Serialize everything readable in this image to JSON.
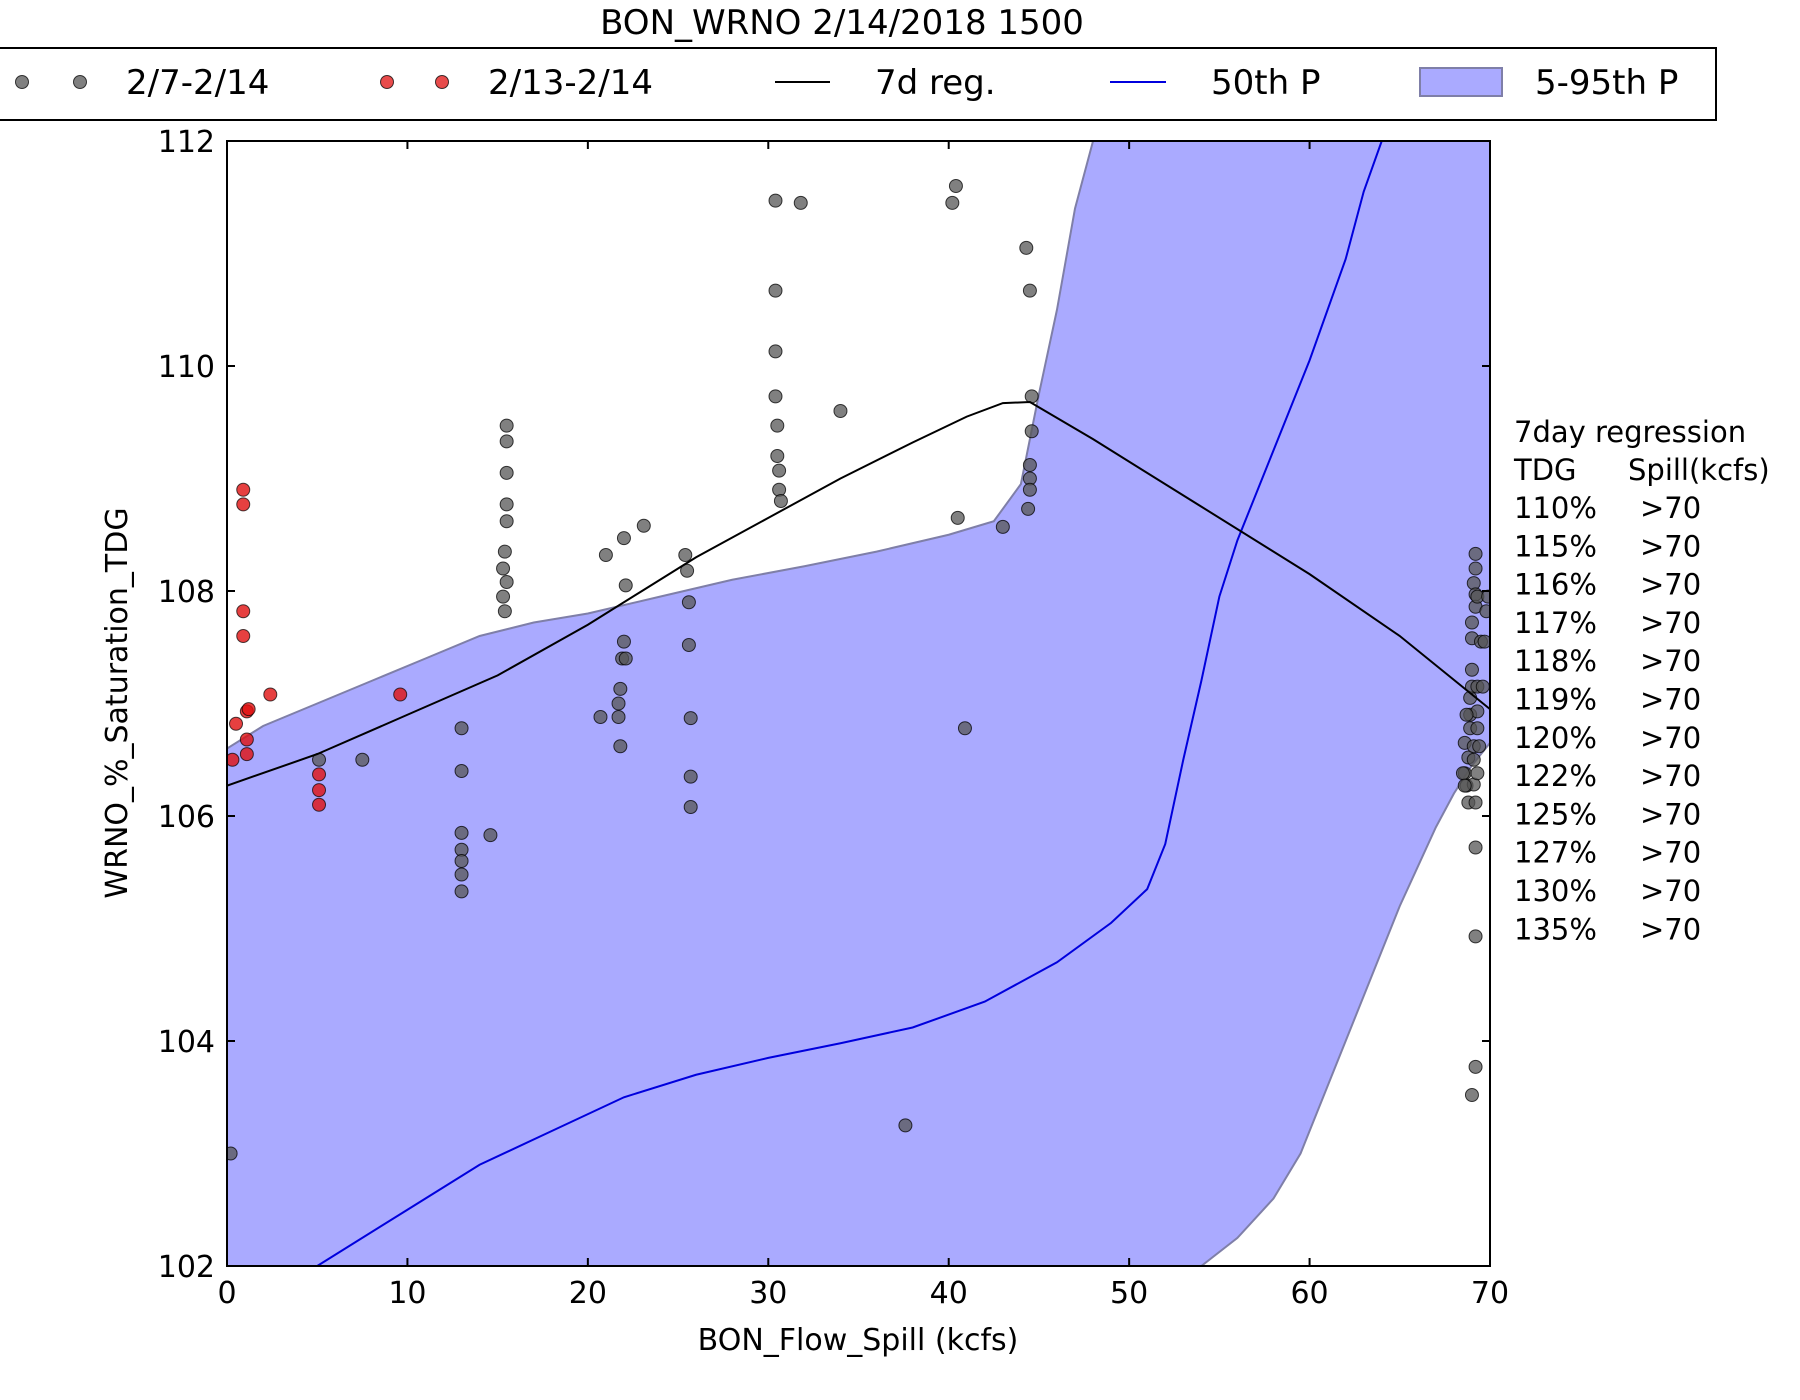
{
  "chart_data": {
    "type": "scatter",
    "title": "BON_WRNO 2/14/2018 1500",
    "xlabel": "BON_Flow_Spill (kcfs)",
    "ylabel": "WRNO_%_Saturation_TDG",
    "xlim": [
      0,
      70
    ],
    "ylim": [
      102,
      112
    ],
    "x_ticks": [
      0,
      10,
      20,
      30,
      40,
      50,
      60,
      70
    ],
    "y_ticks": [
      102,
      104,
      106,
      108,
      110,
      112
    ],
    "grid": false,
    "legend_position": "top, above plot",
    "legend": [
      {
        "label": "2/7-2/14",
        "kind": "markers",
        "color": "#555555"
      },
      {
        "label": "2/13-2/14",
        "kind": "markers",
        "color": "#e03030"
      },
      {
        "label": "7d reg.",
        "kind": "line",
        "color": "#000000"
      },
      {
        "label": "50th P",
        "kind": "line",
        "color": "#0000dd"
      },
      {
        "label": "5-95th P",
        "kind": "band",
        "color": "#aaaaff"
      }
    ],
    "colors": {
      "band_fill": "#aaaaff",
      "band_edge": "#7f7fa8",
      "median": "#0000dd",
      "regression": "#000000",
      "week_points": "#555555",
      "recent_points": "#e01010"
    },
    "series": [
      {
        "name": "5-95th P",
        "kind": "band",
        "upper": [
          [
            0,
            106.6
          ],
          [
            2,
            106.8
          ],
          [
            5,
            107.0
          ],
          [
            8,
            107.2
          ],
          [
            11,
            107.4
          ],
          [
            14,
            107.6
          ],
          [
            17,
            107.72
          ],
          [
            20,
            107.8
          ],
          [
            24,
            107.95
          ],
          [
            28,
            108.1
          ],
          [
            32,
            108.22
          ],
          [
            36,
            108.35
          ],
          [
            40,
            108.5
          ],
          [
            42.5,
            108.62
          ],
          [
            44,
            108.95
          ],
          [
            45,
            109.75
          ],
          [
            46,
            110.5
          ],
          [
            47,
            111.4
          ],
          [
            48,
            112.0
          ],
          [
            70,
            112.0
          ]
        ],
        "lower": [
          [
            0,
            102.0
          ],
          [
            54,
            102.0
          ],
          [
            56,
            102.25
          ],
          [
            58,
            102.6
          ],
          [
            59.5,
            103.0
          ],
          [
            61,
            103.6
          ],
          [
            63,
            104.4
          ],
          [
            65,
            105.2
          ],
          [
            67,
            105.9
          ],
          [
            68,
            106.2
          ],
          [
            69,
            106.45
          ],
          [
            70,
            106.65
          ]
        ]
      },
      {
        "name": "50th P",
        "kind": "line",
        "points": [
          [
            5,
            102.0
          ],
          [
            10,
            102.5
          ],
          [
            14,
            102.9
          ],
          [
            18,
            103.2
          ],
          [
            22,
            103.5
          ],
          [
            26,
            103.7
          ],
          [
            30,
            103.85
          ],
          [
            34,
            103.98
          ],
          [
            38,
            104.12
          ],
          [
            42,
            104.35
          ],
          [
            46,
            104.7
          ],
          [
            49,
            105.05
          ],
          [
            51,
            105.35
          ],
          [
            52,
            105.75
          ],
          [
            53,
            106.5
          ],
          [
            54,
            107.2
          ],
          [
            55,
            107.95
          ],
          [
            56,
            108.45
          ],
          [
            58,
            109.25
          ],
          [
            60,
            110.05
          ],
          [
            62,
            110.95
          ],
          [
            63,
            111.55
          ],
          [
            64,
            112.0
          ]
        ]
      },
      {
        "name": "7d reg.",
        "kind": "line",
        "points": [
          [
            0,
            106.27
          ],
          [
            5,
            106.55
          ],
          [
            10,
            106.9
          ],
          [
            15,
            107.25
          ],
          [
            20,
            107.7
          ],
          [
            23,
            108.0
          ],
          [
            26,
            108.3
          ],
          [
            30,
            108.65
          ],
          [
            34,
            109.0
          ],
          [
            38,
            109.32
          ],
          [
            41,
            109.55
          ],
          [
            43,
            109.67
          ],
          [
            44.5,
            109.68
          ],
          [
            48,
            109.35
          ],
          [
            54,
            108.75
          ],
          [
            60,
            108.15
          ],
          [
            65,
            107.6
          ],
          [
            70,
            106.95
          ]
        ]
      },
      {
        "name": "2/7-2/14",
        "kind": "scatter",
        "points": [
          [
            0.2,
            103.0
          ],
          [
            5.1,
            106.5
          ],
          [
            7.5,
            106.5
          ],
          [
            13.0,
            106.78
          ],
          [
            13.0,
            106.4
          ],
          [
            13.0,
            105.85
          ],
          [
            13.0,
            105.7
          ],
          [
            13.0,
            105.6
          ],
          [
            13.0,
            105.48
          ],
          [
            13.0,
            105.33
          ],
          [
            14.6,
            105.83
          ],
          [
            15.5,
            109.47
          ],
          [
            15.5,
            109.33
          ],
          [
            15.5,
            109.05
          ],
          [
            15.5,
            108.77
          ],
          [
            15.5,
            108.62
          ],
          [
            15.4,
            108.35
          ],
          [
            15.3,
            108.2
          ],
          [
            15.5,
            108.08
          ],
          [
            15.3,
            107.95
          ],
          [
            15.4,
            107.82
          ],
          [
            20.7,
            106.88
          ],
          [
            21.0,
            108.32
          ],
          [
            21.7,
            106.88
          ],
          [
            21.7,
            107.0
          ],
          [
            21.8,
            106.62
          ],
          [
            21.8,
            107.13
          ],
          [
            21.9,
            107.4
          ],
          [
            22.0,
            107.55
          ],
          [
            22.0,
            108.47
          ],
          [
            22.1,
            108.05
          ],
          [
            22.1,
            107.4
          ],
          [
            23.1,
            108.58
          ],
          [
            25.4,
            108.32
          ],
          [
            25.5,
            108.18
          ],
          [
            25.6,
            107.9
          ],
          [
            25.6,
            107.52
          ],
          [
            25.7,
            106.87
          ],
          [
            25.7,
            106.35
          ],
          [
            25.7,
            106.08
          ],
          [
            30.4,
            111.47
          ],
          [
            30.4,
            110.67
          ],
          [
            30.4,
            110.13
          ],
          [
            30.4,
            109.73
          ],
          [
            30.5,
            109.47
          ],
          [
            30.5,
            109.2
          ],
          [
            30.6,
            109.07
          ],
          [
            30.6,
            108.9
          ],
          [
            30.7,
            108.8
          ],
          [
            31.8,
            111.45
          ],
          [
            34.0,
            109.6
          ],
          [
            37.6,
            103.25
          ],
          [
            40.2,
            111.45
          ],
          [
            40.4,
            111.6
          ],
          [
            40.5,
            108.65
          ],
          [
            40.9,
            106.78
          ],
          [
            43.0,
            108.57
          ],
          [
            44.3,
            111.05
          ],
          [
            44.5,
            110.67
          ],
          [
            44.6,
            109.73
          ],
          [
            44.6,
            109.42
          ],
          [
            44.5,
            109.12
          ],
          [
            44.5,
            109.0
          ],
          [
            44.5,
            108.9
          ],
          [
            44.4,
            108.73
          ],
          [
            68.6,
            106.65
          ],
          [
            68.6,
            106.38
          ],
          [
            68.7,
            106.27
          ],
          [
            68.8,
            106.12
          ],
          [
            68.8,
            106.52
          ],
          [
            68.9,
            106.9
          ],
          [
            68.9,
            106.78
          ],
          [
            68.9,
            107.05
          ],
          [
            69.0,
            107.3
          ],
          [
            69.0,
            107.15
          ],
          [
            69.0,
            107.58
          ],
          [
            69.0,
            107.72
          ],
          [
            69.1,
            106.62
          ],
          [
            69.1,
            106.5
          ],
          [
            69.1,
            106.28
          ],
          [
            69.2,
            106.12
          ],
          [
            69.2,
            105.72
          ],
          [
            69.2,
            104.93
          ],
          [
            69.2,
            103.77
          ],
          [
            69.0,
            103.52
          ],
          [
            69.2,
            108.33
          ],
          [
            69.2,
            108.2
          ],
          [
            69.1,
            108.07
          ],
          [
            69.2,
            107.97
          ],
          [
            69.2,
            107.86
          ],
          [
            69.3,
            107.95
          ],
          [
            69.3,
            106.93
          ],
          [
            69.3,
            106.78
          ],
          [
            69.4,
            106.62
          ],
          [
            69.3,
            106.38
          ],
          [
            69.3,
            107.15
          ],
          [
            69.6,
            107.15
          ],
          [
            69.5,
            107.55
          ],
          [
            69.7,
            107.55
          ],
          [
            69.8,
            107.82
          ],
          [
            69.9,
            107.95
          ],
          [
            68.5,
            106.38
          ],
          [
            68.6,
            106.27
          ],
          [
            68.7,
            106.9
          ]
        ]
      },
      {
        "name": "2/13-2/14",
        "kind": "scatter",
        "points": [
          [
            0.3,
            106.5
          ],
          [
            0.5,
            106.82
          ],
          [
            0.9,
            108.9
          ],
          [
            0.9,
            108.77
          ],
          [
            0.9,
            107.82
          ],
          [
            0.9,
            107.6
          ],
          [
            1.1,
            106.93
          ],
          [
            1.1,
            106.68
          ],
          [
            1.1,
            106.55
          ],
          [
            1.2,
            106.95
          ],
          [
            2.4,
            107.08
          ],
          [
            5.1,
            106.37
          ],
          [
            5.1,
            106.23
          ],
          [
            5.1,
            106.1
          ],
          [
            9.6,
            107.08
          ]
        ]
      }
    ],
    "side_table": {
      "heading": "7day regression",
      "columns": [
        "TDG",
        "Spill(kcfs)"
      ],
      "rows": [
        [
          "110%",
          ">70"
        ],
        [
          "115%",
          ">70"
        ],
        [
          "116%",
          ">70"
        ],
        [
          "117%",
          ">70"
        ],
        [
          "118%",
          ">70"
        ],
        [
          "119%",
          ">70"
        ],
        [
          "120%",
          ">70"
        ],
        [
          "122%",
          ">70"
        ],
        [
          "125%",
          ">70"
        ],
        [
          "127%",
          ">70"
        ],
        [
          "130%",
          ">70"
        ],
        [
          "135%",
          ">70"
        ]
      ]
    }
  }
}
